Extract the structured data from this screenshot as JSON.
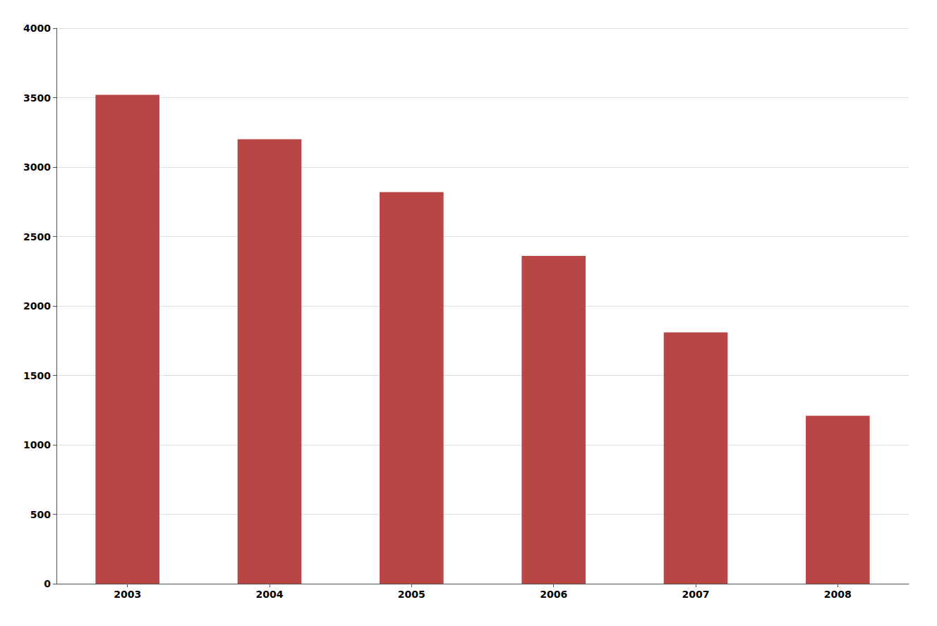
{
  "chart_data": {
    "type": "bar",
    "categories": [
      "2003",
      "2004",
      "2005",
      "2006",
      "2007",
      "2008"
    ],
    "values": [
      3520,
      3200,
      2820,
      2360,
      1810,
      1210
    ],
    "color": "#b94545",
    "ylim": [
      0,
      4000
    ],
    "yticks": [
      0,
      500,
      1000,
      1500,
      2000,
      2500,
      3000,
      3500,
      4000
    ],
    "grid": true
  }
}
